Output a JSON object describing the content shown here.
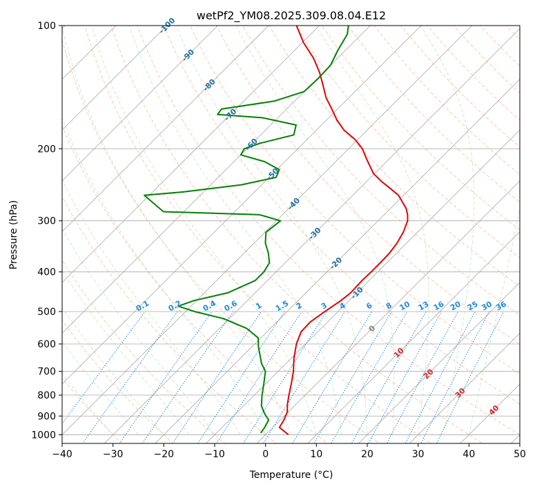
{
  "chart_data": {
    "type": "line",
    "title": "wetPf2_YM08.2025.309.08.04.E12",
    "xlabel": "Temperature (°C)",
    "ylabel": "Pressure (hPa)",
    "xlim": [
      -40,
      50
    ],
    "ylim": [
      1050,
      100
    ],
    "yscale": "log",
    "skew": true,
    "x_ticks": [
      -40,
      -30,
      -20,
      -10,
      0,
      10,
      20,
      30,
      40,
      50
    ],
    "y_ticks": [
      100,
      200,
      300,
      400,
      500,
      600,
      700,
      800,
      900,
      1000
    ],
    "grid": true,
    "series": [
      {
        "role": "temperature",
        "color": "#e00000",
        "points": [
          [
            1000,
            4.5
          ],
          [
            960,
            1.3
          ],
          [
            920,
            0.7
          ],
          [
            880,
            -0.2
          ],
          [
            840,
            -1.8
          ],
          [
            800,
            -3.2
          ],
          [
            750,
            -5.0
          ],
          [
            700,
            -7.0
          ],
          [
            650,
            -9.5
          ],
          [
            600,
            -11.8
          ],
          [
            560,
            -13.3
          ],
          [
            530,
            -13.4
          ],
          [
            500,
            -12.6
          ],
          [
            470,
            -11.6
          ],
          [
            450,
            -11.2
          ],
          [
            420,
            -11.4
          ],
          [
            400,
            -11.3
          ],
          [
            380,
            -11.3
          ],
          [
            360,
            -11.4
          ],
          [
            340,
            -11.9
          ],
          [
            320,
            -12.8
          ],
          [
            300,
            -14.2
          ],
          [
            290,
            -15.4
          ],
          [
            280,
            -16.9
          ],
          [
            270,
            -18.9
          ],
          [
            260,
            -21.0
          ],
          [
            250,
            -24.0
          ],
          [
            240,
            -27.2
          ],
          [
            230,
            -30.2
          ],
          [
            220,
            -32.5
          ],
          [
            210,
            -34.9
          ],
          [
            200,
            -37.3
          ],
          [
            190,
            -40.5
          ],
          [
            180,
            -44.6
          ],
          [
            170,
            -48.0
          ],
          [
            160,
            -51.1
          ],
          [
            150,
            -54.5
          ],
          [
            140,
            -57.5
          ],
          [
            130,
            -60.8
          ],
          [
            120,
            -64.8
          ],
          [
            110,
            -69.8
          ],
          [
            100,
            -74.5
          ]
        ]
      },
      {
        "role": "dewpoint",
        "color": "#008000",
        "points": [
          [
            990,
            -1.3
          ],
          [
            960,
            -1.6
          ],
          [
            920,
            -2.3
          ],
          [
            900,
            -3.6
          ],
          [
            880,
            -4.8
          ],
          [
            850,
            -6.5
          ],
          [
            800,
            -8.5
          ],
          [
            750,
            -10.4
          ],
          [
            700,
            -12.5
          ],
          [
            670,
            -14.8
          ],
          [
            640,
            -16.7
          ],
          [
            610,
            -18.7
          ],
          [
            580,
            -20.5
          ],
          [
            550,
            -24.6
          ],
          [
            520,
            -31.2
          ],
          [
            500,
            -38.2
          ],
          [
            485,
            -42.5
          ],
          [
            470,
            -40.5
          ],
          [
            450,
            -35.4
          ],
          [
            420,
            -32.4
          ],
          [
            400,
            -32.4
          ],
          [
            380,
            -33.1
          ],
          [
            360,
            -35.2
          ],
          [
            340,
            -37.8
          ],
          [
            320,
            -39.8
          ],
          [
            300,
            -39.2
          ],
          [
            290,
            -44.5
          ],
          [
            285,
            -64.0
          ],
          [
            260,
            -71.0
          ],
          [
            255,
            -64.0
          ],
          [
            245,
            -54.0
          ],
          [
            235,
            -48.6
          ],
          [
            225,
            -49.5
          ],
          [
            215,
            -54.0
          ],
          [
            207,
            -60.0
          ],
          [
            200,
            -60.5
          ],
          [
            194,
            -58.5
          ],
          [
            185,
            -53.5
          ],
          [
            175,
            -55.0
          ],
          [
            168,
            -63.0
          ],
          [
            165,
            -72.5
          ],
          [
            160,
            -72.8
          ],
          [
            153,
            -64.0
          ],
          [
            145,
            -60.0
          ],
          [
            135,
            -59.8
          ],
          [
            125,
            -60.0
          ],
          [
            115,
            -61.5
          ],
          [
            105,
            -62.8
          ],
          [
            100,
            -64.3
          ]
        ]
      }
    ],
    "isotherm_labels": [
      "-100",
      "-90",
      "-80",
      "-70",
      "-60",
      "-50",
      "-40",
      "-30",
      "-20",
      "-10",
      "0",
      "10",
      "20",
      "30",
      "40"
    ],
    "mixing_ratio_labels": [
      "0.1",
      "0.2",
      "0.4",
      "0.6",
      "1",
      "1.5",
      "2",
      "3",
      "4",
      "6",
      "8",
      "10",
      "13",
      "16",
      "20",
      "25",
      "30",
      "36"
    ]
  }
}
